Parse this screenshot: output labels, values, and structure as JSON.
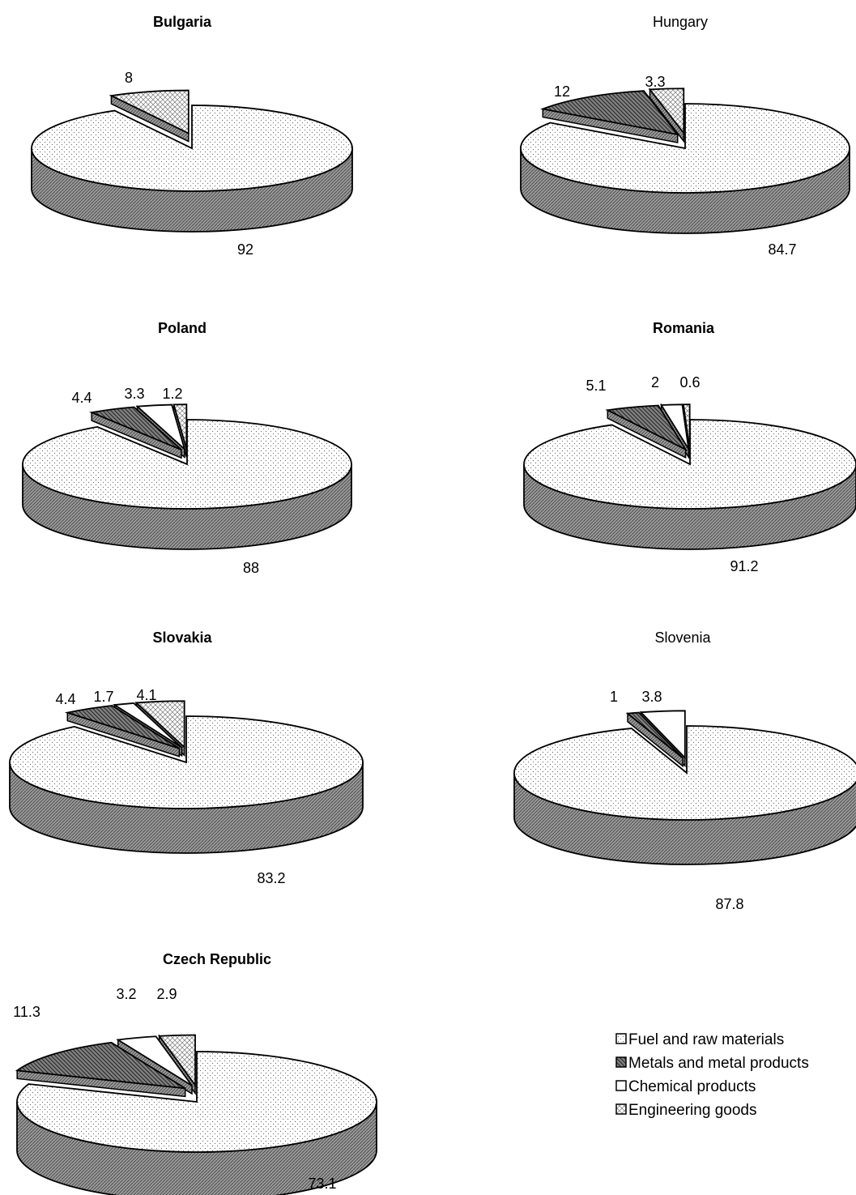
{
  "chart_data": [
    {
      "type": "pie",
      "title": "Bulgaria",
      "categories": [
        "Fuel and raw materials",
        "Metals and metal products",
        "Chemical products",
        "Engineering goods"
      ],
      "values": [
        92,
        null,
        null,
        8
      ],
      "labels": [
        "92",
        "",
        "",
        "8"
      ]
    },
    {
      "type": "pie",
      "title": "Hungary",
      "categories": [
        "Fuel and raw materials",
        "Metals and metal products",
        "Chemical products",
        "Engineering goods"
      ],
      "values": [
        84.7,
        12,
        null,
        3.3
      ],
      "labels": [
        "84.7",
        "12",
        "",
        "3.3"
      ]
    },
    {
      "type": "pie",
      "title": "Poland",
      "categories": [
        "Fuel and raw materials",
        "Metals and metal products",
        "Chemical products",
        "Engineering goods"
      ],
      "values": [
        88,
        4.4,
        3.3,
        1.2
      ],
      "labels": [
        "88",
        "4.4",
        "3.3",
        "1.2"
      ]
    },
    {
      "type": "pie",
      "title": "Romania",
      "categories": [
        "Fuel and raw materials",
        "Metals and metal products",
        "Chemical products",
        "Engineering goods"
      ],
      "values": [
        91.2,
        5.1,
        2,
        0.6
      ],
      "labels": [
        "91.2",
        "5.1",
        "2",
        "0.6"
      ]
    },
    {
      "type": "pie",
      "title": "Slovakia",
      "categories": [
        "Fuel and raw materials",
        "Metals and metal products",
        "Chemical products",
        "Engineering goods"
      ],
      "values": [
        83.2,
        4.4,
        1.7,
        4.1
      ],
      "labels": [
        "83.2",
        "4.4",
        "1.7",
        "4.1"
      ]
    },
    {
      "type": "pie",
      "title": "Slovenia",
      "categories": [
        "Fuel and raw materials",
        "Metals and metal products",
        "Chemical products",
        "Engineering goods"
      ],
      "values": [
        87.8,
        1,
        3.8,
        null
      ],
      "labels": [
        "87.8",
        "1",
        "3.8",
        ""
      ]
    },
    {
      "type": "pie",
      "title": "Czech Republic",
      "categories": [
        "Fuel and raw materials",
        "Metals and metal products",
        "Chemical products",
        "Engineering goods"
      ],
      "values": [
        73.1,
        11.3,
        3.2,
        2.9
      ],
      "labels": [
        "73.1",
        "11.3",
        "3.2",
        "2.9"
      ]
    }
  ],
  "legend": {
    "placement": "bottom-right",
    "items": [
      "Fuel and raw materials",
      "Metals and metal products",
      "Chemical products",
      "Engineering goods"
    ]
  },
  "colors": {
    "fuel": "#ffffff",
    "metals": "#6e6e6e",
    "chemical": "#ffffff",
    "engineering": "#d0d0d0",
    "side": "#8a8a8a",
    "stroke": "#000000"
  }
}
